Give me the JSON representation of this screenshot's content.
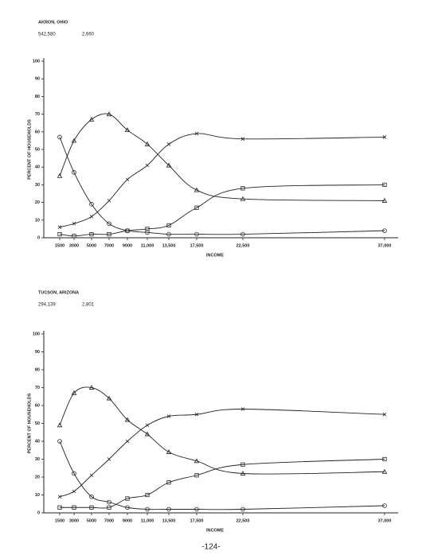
{
  "page_number": "-124-",
  "chart_data": [
    {
      "type": "line",
      "title": "AKRON, OHIO",
      "annotations": [
        "542,580",
        "2,660"
      ],
      "xlabel": "INCOME",
      "ylabel": "PERCENT OF HOUSEHOLDS",
      "categories": [
        "1500",
        "3000",
        "5000",
        "7000",
        "9000",
        "11,000",
        "13,500",
        "17,500",
        "22,500",
        "37,000"
      ],
      "ylim": [
        0,
        100
      ],
      "yticks": [
        0,
        10,
        20,
        30,
        40,
        50,
        60,
        70,
        80,
        90,
        100
      ],
      "series": [
        {
          "marker": "triangle",
          "color": "#222",
          "values": [
            35,
            55,
            67,
            70,
            61,
            53,
            41,
            27,
            22,
            21
          ]
        },
        {
          "marker": "x",
          "color": "#222",
          "values": [
            6,
            8,
            12,
            21,
            33,
            41,
            53,
            59,
            56,
            57
          ]
        },
        {
          "marker": "square",
          "color": "#222",
          "values": [
            2,
            1,
            2,
            2,
            4,
            5,
            7,
            17,
            28,
            30
          ]
        },
        {
          "marker": "circle",
          "color": "#222",
          "values": [
            57,
            37,
            19,
            8,
            4,
            3,
            2,
            2,
            2,
            4
          ]
        }
      ]
    },
    {
      "type": "line",
      "title": "TUCSON, ARIZONA",
      "annotations": [
        "294,139",
        "2,801"
      ],
      "xlabel": "INCOME",
      "ylabel": "PERCENT OF HOUSEHOLDS",
      "categories": [
        "1500",
        "3000",
        "5000",
        "7000",
        "9000",
        "11,000",
        "13,500",
        "17,500",
        "22,500",
        "37,000"
      ],
      "ylim": [
        0,
        100
      ],
      "yticks": [
        0,
        10,
        20,
        30,
        40,
        50,
        60,
        70,
        80,
        90,
        100
      ],
      "series": [
        {
          "marker": "triangle",
          "color": "#222",
          "values": [
            49,
            67,
            70,
            64,
            52,
            44,
            34,
            29,
            22,
            23
          ]
        },
        {
          "marker": "x",
          "color": "#222",
          "values": [
            9,
            12,
            21,
            30,
            40,
            49,
            54,
            55,
            58,
            55
          ]
        },
        {
          "marker": "square",
          "color": "#222",
          "values": [
            3,
            3,
            3,
            3,
            8,
            10,
            17,
            21,
            27,
            30
          ]
        },
        {
          "marker": "circle",
          "color": "#222",
          "values": [
            40,
            22,
            9,
            6,
            3,
            2,
            2,
            2,
            2,
            4
          ]
        }
      ]
    }
  ]
}
